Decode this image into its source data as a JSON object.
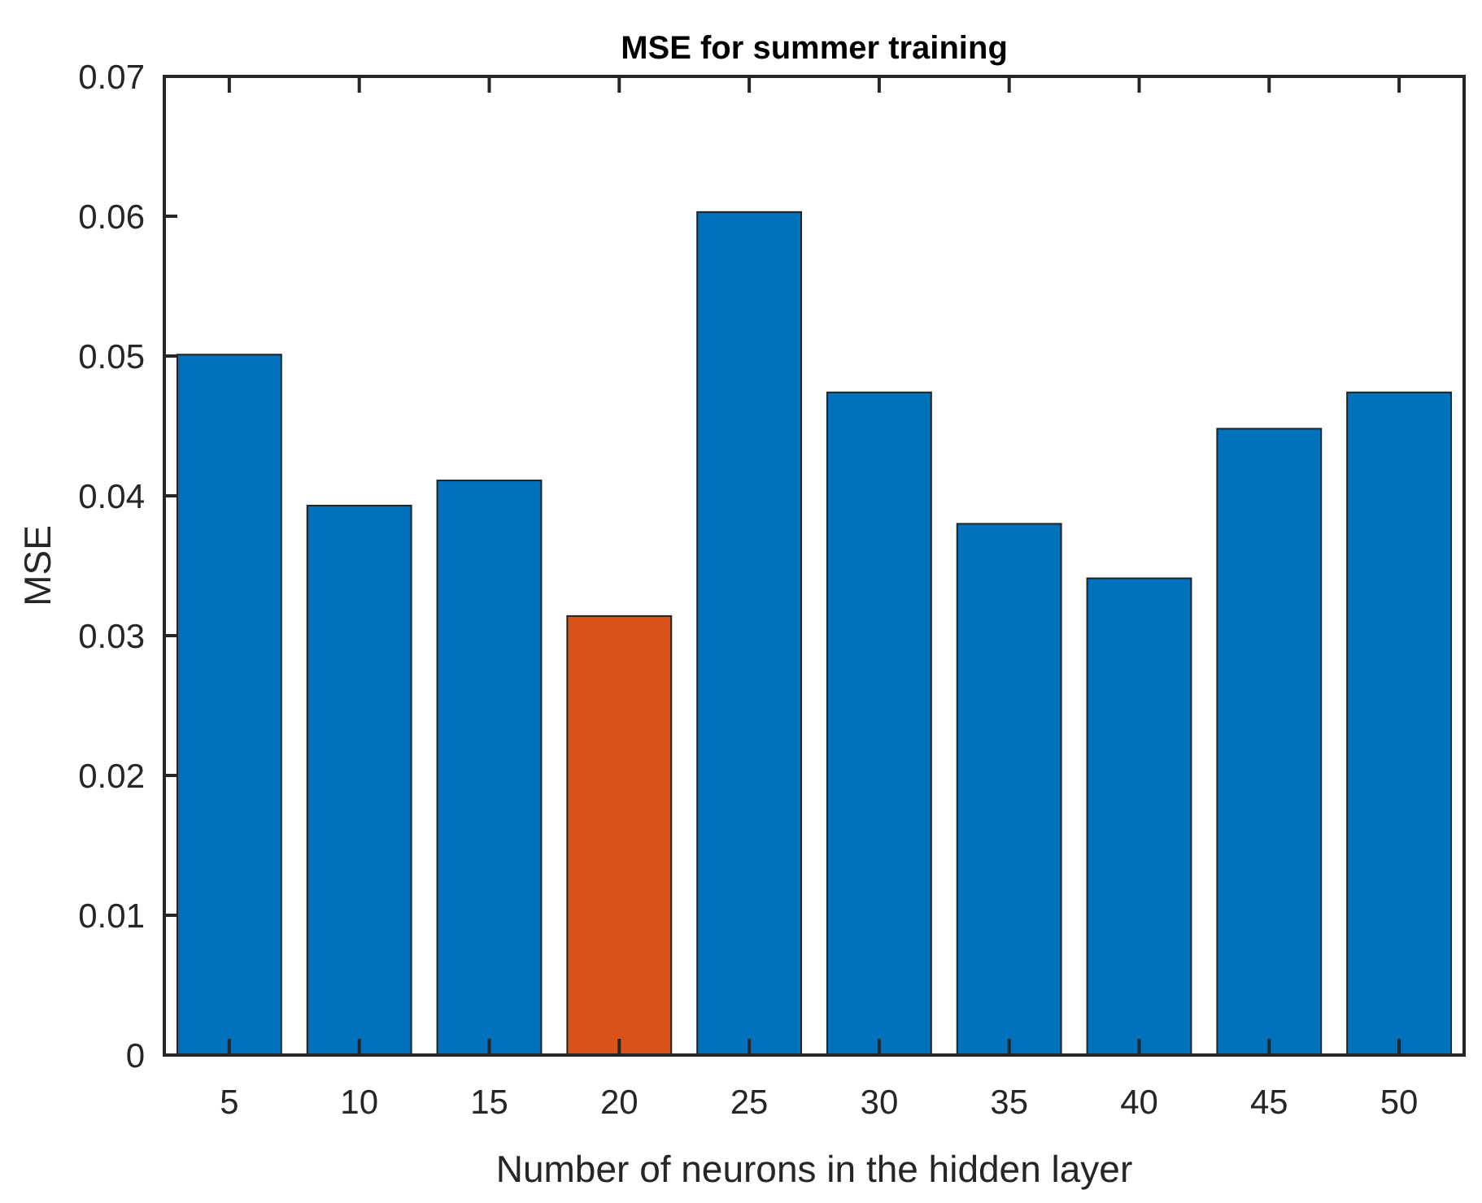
{
  "chart_data": {
    "type": "bar",
    "title": "MSE for summer training",
    "xlabel": "Number of neurons in the hidden layer",
    "ylabel": "MSE",
    "categories": [
      "5",
      "10",
      "15",
      "20",
      "25",
      "30",
      "35",
      "40",
      "45",
      "50"
    ],
    "values": [
      0.0501,
      0.0393,
      0.0411,
      0.0314,
      0.0603,
      0.0474,
      0.038,
      0.0341,
      0.0448,
      0.0474
    ],
    "colors": [
      "#0072bd",
      "#0072bd",
      "#0072bd",
      "#d95319",
      "#0072bd",
      "#0072bd",
      "#0072bd",
      "#0072bd",
      "#0072bd",
      "#0072bd"
    ],
    "ylim": [
      0,
      0.07
    ],
    "yticks": [
      0,
      0.01,
      0.02,
      0.03,
      0.04,
      0.05,
      0.06,
      0.07
    ],
    "grid": false
  }
}
